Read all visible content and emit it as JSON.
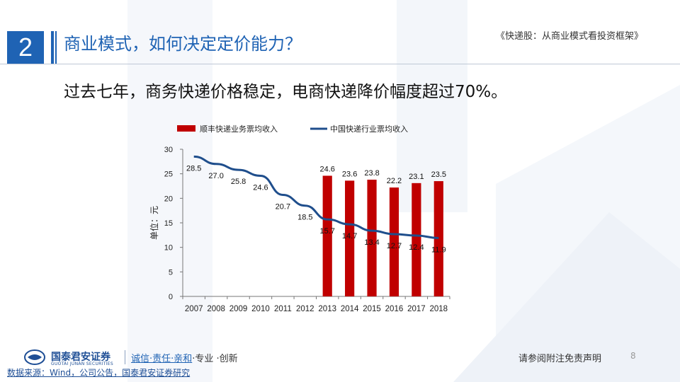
{
  "header": {
    "section_number": "2",
    "section_title": "商业模式，如何决定定价能力？",
    "report_title": "《快递股：从商业模式看投资框架》"
  },
  "headline": "过去七年，商务快递价格稳定，电商快递降价幅度超过70%。",
  "footer": {
    "brand": "国泰君安证券",
    "brand_en": "GUOTAI JUNAN SECURITIES",
    "motto_highlight": "诚信·责任·亲和",
    "motto_rest": "·专业 ·创新",
    "disclaimer": "请参阅附注免责声明",
    "page_number": "8",
    "source": "数据来源：Wind，公司公告，国泰君安证券研究"
  },
  "colors": {
    "accent": "#1f63b4",
    "bar": "#c00000",
    "line": "#1f4e8c"
  },
  "chart_data": {
    "type": "bar",
    "categories": [
      "2007",
      "2008",
      "2009",
      "2010",
      "2011",
      "2012",
      "2013",
      "2014",
      "2015",
      "2016",
      "2017",
      "2018"
    ],
    "series": [
      {
        "name": "顺丰快递业务票均收入",
        "type": "bar",
        "values": [
          null,
          null,
          null,
          null,
          null,
          null,
          24.6,
          23.6,
          23.8,
          22.2,
          23.1,
          23.5
        ],
        "labels": [
          "",
          "",
          "",
          "",
          "",
          "",
          "24.6",
          "23.6",
          "23.8",
          "22.2",
          "23.1",
          "23.5"
        ]
      },
      {
        "name": "中国快递行业票均收入",
        "type": "line",
        "values": [
          28.5,
          27.0,
          25.8,
          24.6,
          20.7,
          18.5,
          15.7,
          14.7,
          13.4,
          12.7,
          12.4,
          11.9
        ],
        "labels": [
          "28.5",
          "27.0",
          "25.8",
          "24.6",
          "20.7",
          "18.5",
          "15.7",
          "14.7",
          "13.4",
          "12.7",
          "12.4",
          "11.9"
        ]
      }
    ],
    "ylabel": "单位：元",
    "ylim": [
      0,
      30
    ],
    "yticks": [
      0,
      5,
      10,
      15,
      20,
      25,
      30
    ],
    "legend_position": "top",
    "grid": false
  }
}
